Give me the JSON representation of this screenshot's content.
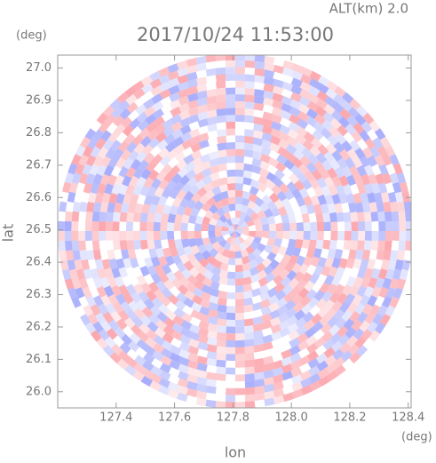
{
  "chart_data": {
    "type": "radar_ppi",
    "title": "2017/10/24 11:53:00",
    "annotation": "ALT(km) 2.0",
    "x_label": "lon",
    "y_label": "lat",
    "x_unit": "(deg)",
    "y_unit": "(deg)",
    "xlim": [
      127.2,
      128.41
    ],
    "ylim": [
      25.95,
      27.04
    ],
    "xticks": [
      127.4,
      127.6,
      127.8,
      {
        "value": 128,
        "label": "128.0"
      },
      128.2,
      128.4
    ],
    "yticks": [
      {
        "value": 26,
        "label": "26.0"
      },
      26.1,
      26.2,
      26.3,
      26.4,
      26.5,
      26.6,
      26.7,
      26.8,
      26.9,
      {
        "value": 27,
        "label": "27.0"
      }
    ]
  }
}
